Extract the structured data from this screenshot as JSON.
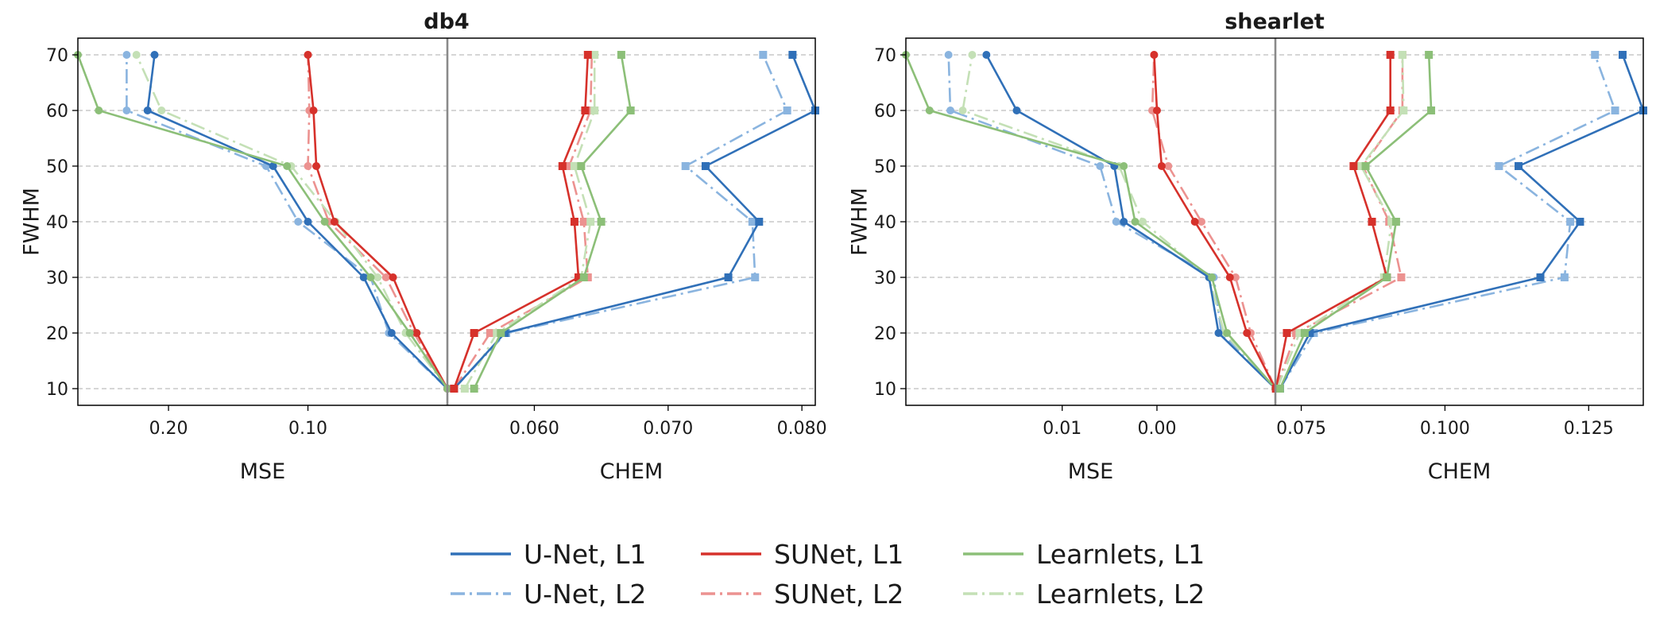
{
  "chart_data": {
    "type": "line",
    "fwhm": [
      10,
      20,
      30,
      40,
      50,
      60,
      70
    ],
    "ylabel": "FWHM",
    "ylim": [
      7,
      73
    ],
    "yticks": [
      10,
      20,
      30,
      40,
      50,
      60,
      70
    ],
    "series_styles": [
      {
        "name": "U-Net, L1",
        "color": "#3070b8",
        "dash": "solid",
        "opacity": 1
      },
      {
        "name": "U-Net, L2",
        "color": "#8ab4df",
        "dash": "dashdot",
        "opacity": 1
      },
      {
        "name": "SUNet, L1",
        "color": "#d6312b",
        "dash": "solid",
        "opacity": 1
      },
      {
        "name": "SUNet, L2",
        "color": "#ec9290",
        "dash": "dashdot",
        "opacity": 1
      },
      {
        "name": "Learnlets, L1",
        "color": "#8cbf78",
        "dash": "solid",
        "opacity": 1
      },
      {
        "name": "Learnlets, L2",
        "color": "#c4e0b6",
        "dash": "dashdot",
        "opacity": 1
      }
    ],
    "panels": [
      {
        "title": "db4",
        "mse": {
          "xlabel": "MSE",
          "xlim": [
            0.265,
            0.0
          ],
          "xticks": [
            0.2,
            0.1
          ],
          "xtick_labels": [
            "0.20",
            "0.10"
          ],
          "series": [
            [
              0.0,
              0.04,
              0.06,
              0.1,
              0.125,
              0.215,
              0.21
            ],
            [
              0.0,
              0.042,
              0.055,
              0.107,
              0.13,
              0.23,
              0.23
            ],
            [
              0.0,
              0.022,
              0.039,
              0.081,
              0.094,
              0.096,
              0.1
            ],
            [
              0.0,
              0.024,
              0.044,
              0.085,
              0.1,
              0.099,
              0.1
            ],
            [
              0.0,
              0.027,
              0.055,
              0.088,
              0.115,
              0.25,
              0.265
            ],
            [
              0.0,
              0.03,
              0.05,
              0.08,
              0.112,
              0.205,
              0.223
            ]
          ]
        },
        "chem": {
          "xlabel": "CHEM",
          "xlim": [
            0.0535,
            0.081
          ],
          "xticks": [
            0.06,
            0.07,
            0.08
          ],
          "xtick_labels": [
            "0.060",
            "0.070",
            "0.080"
          ],
          "series": [
            [
              0.054,
              0.0578,
              0.0745,
              0.0768,
              0.0728,
              0.081,
              0.0793
            ],
            [
              0.054,
              0.0579,
              0.0765,
              0.0763,
              0.0713,
              0.0789,
              0.0771
            ],
            [
              0.054,
              0.0555,
              0.0633,
              0.063,
              0.0621,
              0.0638,
              0.064
            ],
            [
              0.054,
              0.0567,
              0.064,
              0.0637,
              0.0626,
              0.0642,
              0.0643
            ],
            [
              0.0555,
              0.0575,
              0.0637,
              0.065,
              0.0635,
              0.0672,
              0.0665
            ],
            [
              0.0548,
              0.0572,
              0.0635,
              0.0642,
              0.063,
              0.0645,
              0.0645
            ]
          ]
        }
      },
      {
        "title": "shearlet",
        "mse": {
          "xlabel": "MSE",
          "xlim": [
            0.0265,
            -0.0125
          ],
          "xticks": [
            0.01,
            0.0
          ],
          "xtick_labels": [
            "0.01",
            "0.00"
          ],
          "series": [
            [
              -0.0125,
              -0.0065,
              -0.0055,
              0.0035,
              0.0045,
              0.0148,
              0.018
            ],
            [
              -0.0125,
              -0.0068,
              -0.006,
              0.0043,
              0.006,
              0.0218,
              0.022
            ],
            [
              -0.0125,
              -0.0095,
              -0.0077,
              -0.004,
              -0.0005,
              0.0,
              0.0003
            ],
            [
              -0.0125,
              -0.0099,
              -0.0083,
              -0.0047,
              -0.0012,
              0.0005,
              0.0003
            ],
            [
              -0.0125,
              -0.0074,
              -0.0058,
              0.0023,
              0.0035,
              0.024,
              0.0265
            ],
            [
              -0.0125,
              -0.0071,
              -0.0055,
              0.0015,
              0.004,
              0.0205,
              0.0195
            ]
          ]
        },
        "chem": {
          "xlabel": "CHEM",
          "xlim": [
            0.0705,
            0.1345
          ],
          "xticks": [
            0.075,
            0.1,
            0.125
          ],
          "xtick_labels": [
            "0.075",
            "0.100",
            "0.125"
          ],
          "series": [
            [
              0.0713,
              0.0765,
              0.1166,
              0.1235,
              0.1128,
              0.1345,
              0.1309
            ],
            [
              0.0713,
              0.0772,
              0.1208,
              0.1218,
              0.1094,
              0.1296,
              0.1261
            ],
            [
              0.0706,
              0.0725,
              0.0899,
              0.0873,
              0.0841,
              0.0905,
              0.0905
            ],
            [
              0.0706,
              0.0741,
              0.0924,
              0.0903,
              0.0857,
              0.0926,
              0.0926
            ],
            [
              0.0713,
              0.0756,
              0.0899,
              0.0915,
              0.0862,
              0.0976,
              0.0972
            ],
            [
              0.0708,
              0.0747,
              0.0894,
              0.0907,
              0.0854,
              0.0928,
              0.0926
            ]
          ]
        }
      }
    ],
    "legend_position": "bottom-center",
    "legend": [
      "U-Net, L1",
      "U-Net, L2",
      "SUNet, L1",
      "SUNet, L2",
      "Learnlets, L1",
      "Learnlets, L2"
    ]
  }
}
